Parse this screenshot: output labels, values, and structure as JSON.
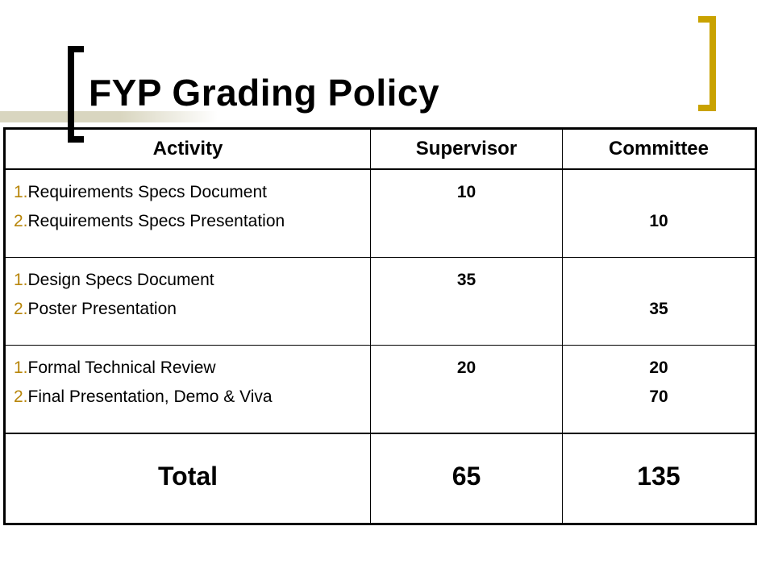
{
  "slide": {
    "title": "FYP Grading Policy",
    "accent_color": "#c9a200",
    "number_color": "#b8860b"
  },
  "table": {
    "headers": [
      "Activity",
      "Supervisor",
      "Committee"
    ],
    "rows": [
      {
        "items": [
          {
            "num": "1.",
            "text": "Requirements Specs Document"
          },
          {
            "num": "2.",
            "text": "Requirements Specs Presentation"
          }
        ],
        "supervisor": [
          "10",
          ""
        ],
        "committee": [
          "",
          "10"
        ]
      },
      {
        "items": [
          {
            "num": "1.",
            "text": "Design Specs Document"
          },
          {
            "num": "2.",
            "text": "Poster Presentation"
          }
        ],
        "supervisor": [
          "35",
          ""
        ],
        "committee": [
          "",
          "35"
        ]
      },
      {
        "items": [
          {
            "num": "1.",
            "text": "Formal Technical Review"
          },
          {
            "num": "2.",
            "text": "Final Presentation, Demo & Viva"
          }
        ],
        "supervisor": [
          "20",
          ""
        ],
        "committee": [
          "20",
          "70"
        ]
      }
    ],
    "total": {
      "label": "Total",
      "supervisor": "65",
      "committee": "135"
    }
  }
}
